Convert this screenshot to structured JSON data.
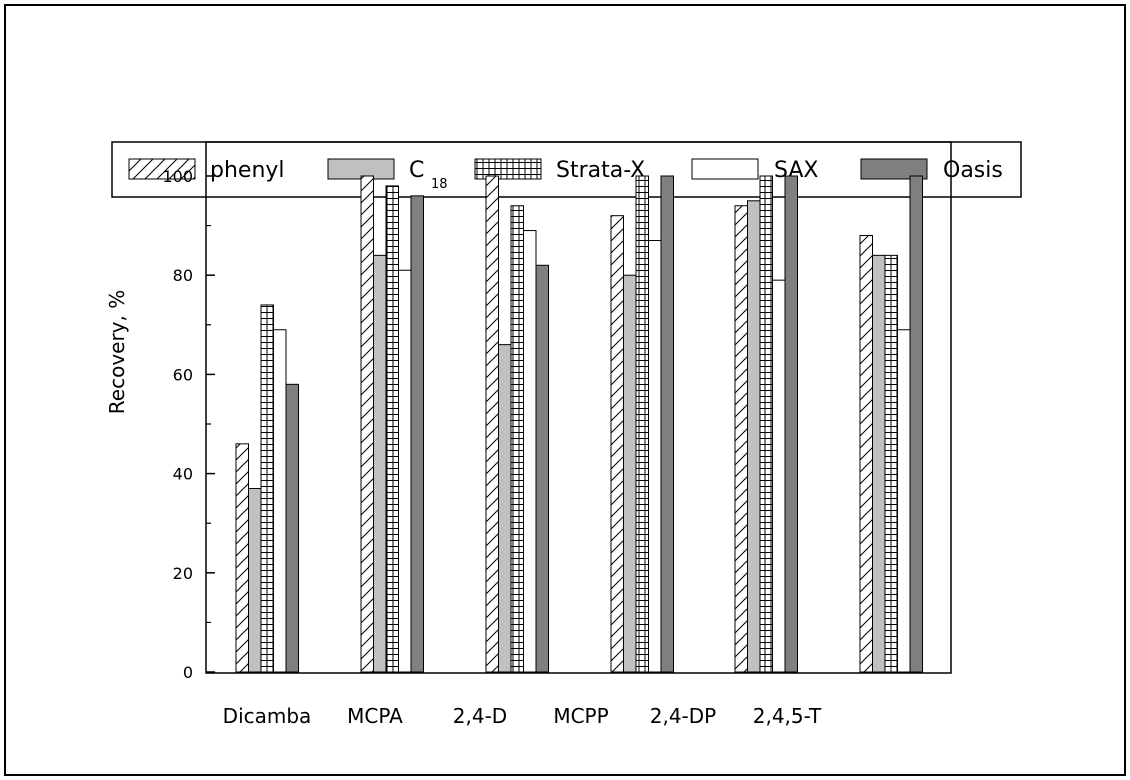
{
  "chart_data": {
    "type": "bar",
    "title": "",
    "xlabel": "",
    "ylabel": "Recovery, %",
    "ylim": [
      0,
      100
    ],
    "yticks": [
      "0",
      "20",
      "40",
      "60",
      "80",
      "100"
    ],
    "grid": false,
    "legend_position": "top",
    "categories": [
      "Dicamba",
      "MCPA",
      "2,4-D",
      "MCPP",
      "2,4-DP",
      "2,4,5-T"
    ],
    "series": [
      {
        "name": "phenyl",
        "pattern": "diagonal-hatch",
        "color": "#ffffff",
        "values": [
          46,
          100,
          100,
          92,
          94,
          88
        ]
      },
      {
        "name": "C",
        "subscript": "18",
        "pattern": "solid",
        "color": "#c0c0c0",
        "values": [
          37,
          84,
          66,
          80,
          95,
          84
        ]
      },
      {
        "name": "Strata-X",
        "pattern": "grid",
        "color": "#ffffff",
        "values": [
          74,
          98,
          94,
          100,
          100,
          84
        ]
      },
      {
        "name": "SAX",
        "pattern": "solid",
        "color": "#ffffff",
        "values": [
          69,
          81,
          89,
          87,
          79,
          69
        ]
      },
      {
        "name": "Oasis",
        "pattern": "solid",
        "color": "#808080",
        "values": [
          58,
          96,
          82,
          100,
          100,
          100
        ]
      }
    ]
  }
}
